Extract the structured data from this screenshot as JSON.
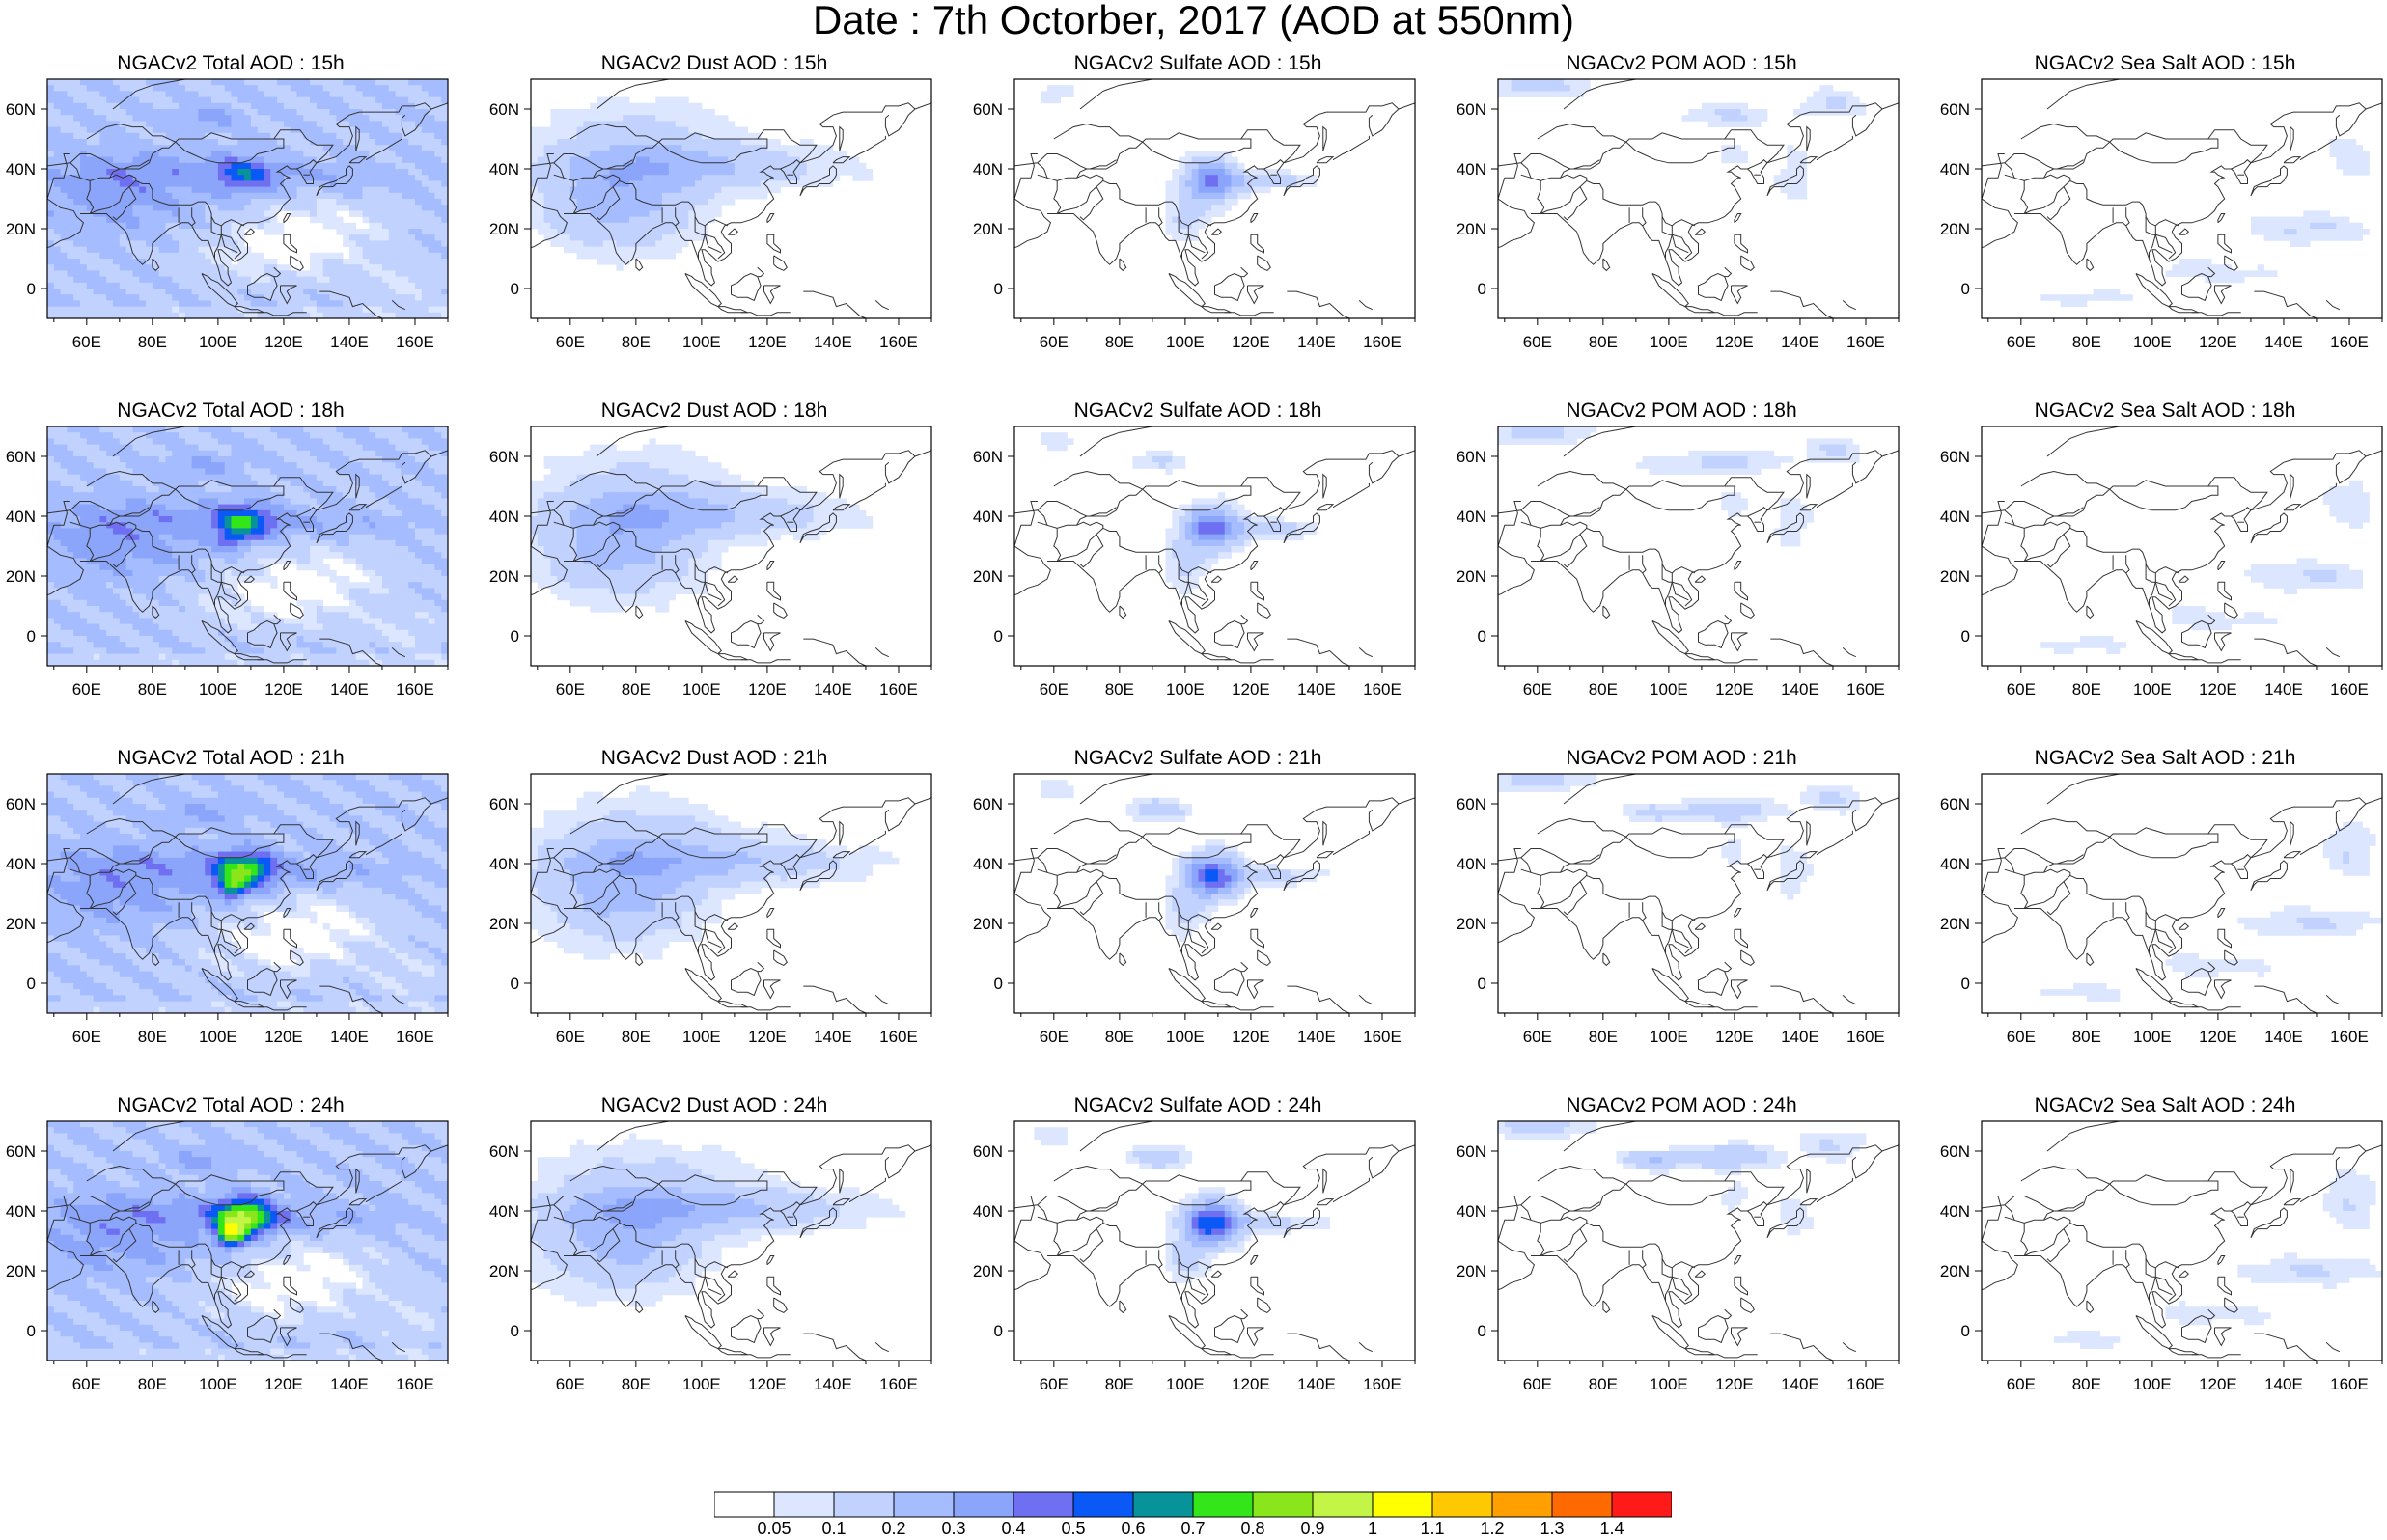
{
  "title": "Date : 7th Octorber, 2017 (AOD at 550nm)",
  "panels": [
    [
      "NGACv2 Total AOD : 15h",
      "NGACv2 Dust AOD : 15h",
      "NGACv2 Sulfate AOD : 15h",
      "NGACv2 POM AOD : 15h",
      "NGACv2 Sea Salt AOD : 15h"
    ],
    [
      "NGACv2 Total AOD : 18h",
      "NGACv2 Dust AOD : 18h",
      "NGACv2 Sulfate AOD : 18h",
      "NGACv2 POM AOD : 18h",
      "NGACv2 Sea Salt AOD : 18h"
    ],
    [
      "NGACv2 Total AOD : 21h",
      "NGACv2 Dust AOD : 21h",
      "NGACv2 Sulfate AOD : 21h",
      "NGACv2 POM AOD : 21h",
      "NGACv2 Sea Salt AOD : 21h"
    ],
    [
      "NGACv2 Total AOD : 24h",
      "NGACv2 Dust AOD : 24h",
      "NGACv2 Sulfate AOD : 24h",
      "NGACv2 POM AOD : 24h",
      "NGACv2 Sea Salt  AOD : 24h"
    ]
  ],
  "map": {
    "lon_ticks": [
      "60E",
      "80E",
      "100E",
      "120E",
      "140E",
      "160E"
    ],
    "lat_ticks": [
      "60N",
      "40N",
      "20N",
      "0"
    ]
  },
  "colorbar": {
    "labels": [
      "0.05",
      "0.1",
      "0.2",
      "0.3",
      "0.4",
      "0.5",
      "0.6",
      "0.7",
      "0.8",
      "0.9",
      "1",
      "1.1",
      "1.2",
      "1.3",
      "1.4"
    ],
    "colors": [
      "#ffffff",
      "#dce6ff",
      "#c2d2ff",
      "#a5bcff",
      "#8ba5fb",
      "#6f6ff2",
      "#0a58f5",
      "#08939b",
      "#33e61a",
      "#8ae61a",
      "#c2f545",
      "#ffff00",
      "#ffc800",
      "#ff9f00",
      "#ff6a00",
      "#ff1a1a"
    ]
  }
}
